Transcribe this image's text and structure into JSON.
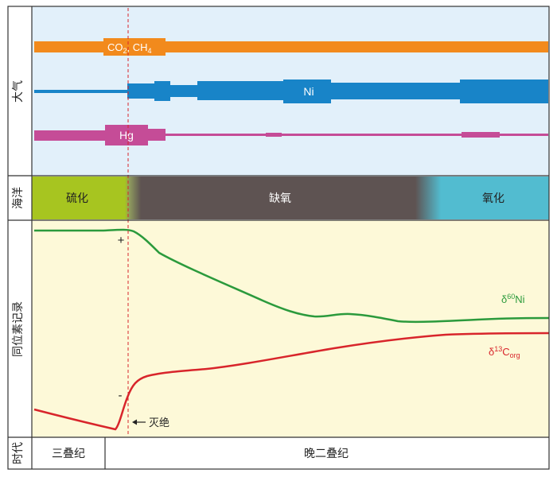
{
  "rows": {
    "atmosphere": "大气",
    "ocean": "海洋",
    "isotope": "同位素记录",
    "era": "时代"
  },
  "atmosphere": {
    "co2": {
      "text": "CO",
      "sub1": "2",
      "mid": ", CH",
      "sub2": "4"
    },
    "ni": "Ni",
    "hg": "Hg"
  },
  "ocean": {
    "sulfidic": "硫化",
    "anoxic": "缺氧",
    "oxic": "氧化"
  },
  "isotopes": {
    "ni_label": {
      "delta": "δ",
      "sup": "60",
      "element": "Ni"
    },
    "c_label": {
      "delta": "δ",
      "sup": "13",
      "element": "C",
      "sub": "org"
    },
    "plus": "+",
    "minus": "-",
    "extinction": "灭绝"
  },
  "era": {
    "triassic": "三叠纪",
    "late_permian": "晚二叠纪"
  },
  "colors": {
    "atmosphere_bg": "#e2f0fa",
    "isotope_bg": "#fdf9d8",
    "co2": "#f28a1c",
    "ni": "#1884c8",
    "hg": "#c54c97",
    "sulfidic": "#a7c520",
    "anoxic": "#5e5352",
    "oxic": "#52bcd0",
    "ni_curve": "#2b9a3c",
    "c_curve": "#d8252b",
    "extinction_line": "#d8252b"
  }
}
